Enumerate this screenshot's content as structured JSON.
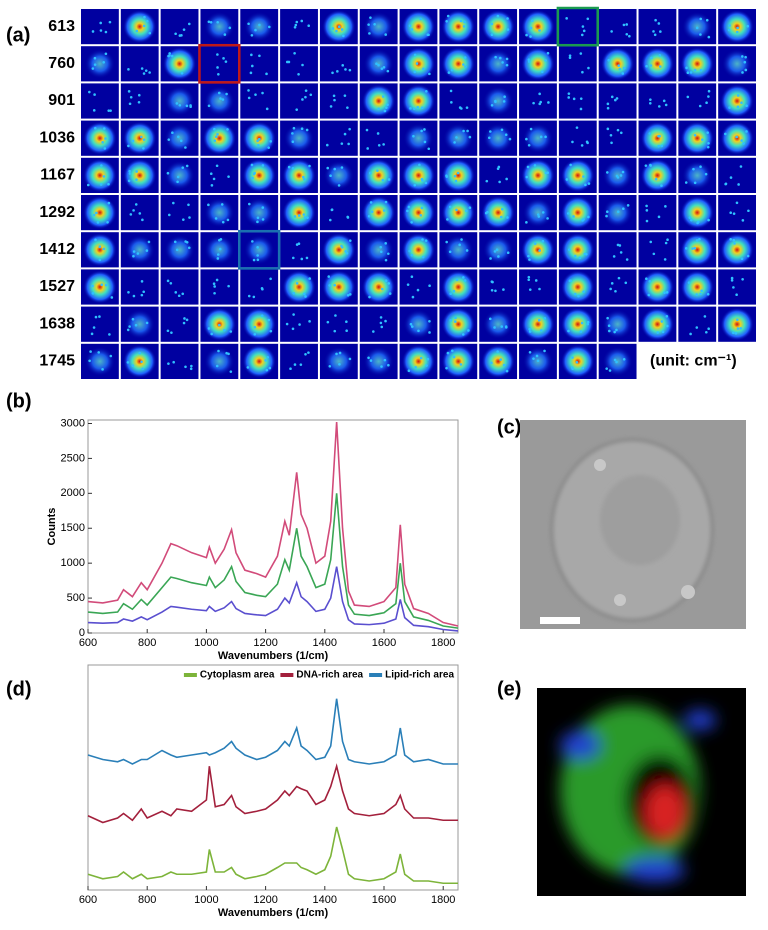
{
  "panels": {
    "labels": [
      "(a)",
      "(b)",
      "(c)",
      "(d)",
      "(e)"
    ]
  },
  "panel_a": {
    "row_labels": [
      613,
      760,
      901,
      1036,
      1167,
      1292,
      1412,
      1527,
      1638,
      1745
    ],
    "unit_label": "(unit: cm⁻¹)"
  },
  "chart_data": [
    {
      "type": "line",
      "xlabel": "Wavenumbers (1/cm)",
      "ylabel": "Counts",
      "x": [
        600,
        650,
        700,
        720,
        750,
        780,
        800,
        850,
        880,
        900,
        950,
        1000,
        1010,
        1030,
        1060,
        1085,
        1100,
        1130,
        1170,
        1200,
        1240,
        1265,
        1280,
        1305,
        1320,
        1340,
        1370,
        1400,
        1420,
        1440,
        1460,
        1480,
        1500,
        1550,
        1600,
        1640,
        1655,
        1670,
        1700,
        1750,
        1800,
        1850
      ],
      "series": [
        {
          "color": "#d24b7a",
          "values": [
            450,
            430,
            470,
            620,
            520,
            720,
            620,
            1000,
            1280,
            1250,
            1150,
            1080,
            1230,
            1000,
            1200,
            1480,
            1150,
            900,
            850,
            800,
            1100,
            1600,
            1400,
            2300,
            1700,
            1500,
            1000,
            1100,
            1600,
            3020,
            1500,
            600,
            400,
            380,
            450,
            650,
            1550,
            700,
            350,
            280,
            150,
            100
          ]
        },
        {
          "color": "#3aa655",
          "values": [
            300,
            280,
            300,
            420,
            340,
            480,
            400,
            650,
            800,
            780,
            720,
            680,
            800,
            650,
            760,
            950,
            740,
            580,
            540,
            520,
            700,
            1050,
            900,
            1500,
            1100,
            950,
            650,
            700,
            1050,
            2000,
            950,
            400,
            270,
            250,
            290,
            420,
            1000,
            450,
            230,
            180,
            100,
            70
          ]
        },
        {
          "color": "#5a4fcf",
          "values": [
            150,
            140,
            150,
            200,
            170,
            230,
            190,
            300,
            380,
            370,
            340,
            320,
            380,
            310,
            360,
            450,
            350,
            280,
            260,
            250,
            340,
            500,
            430,
            720,
            520,
            450,
            310,
            340,
            500,
            950,
            450,
            190,
            130,
            120,
            140,
            200,
            480,
            220,
            110,
            90,
            50,
            30
          ]
        }
      ],
      "xlim": [
        600,
        1850
      ],
      "ylim": [
        0,
        3050
      ],
      "xticks": [
        600,
        800,
        1000,
        1200,
        1400,
        1600,
        1800
      ],
      "yticks": [
        0,
        500,
        1000,
        1500,
        2000,
        2500,
        3000
      ]
    },
    {
      "type": "line",
      "xlabel": "Wavenumbers (1/cm)",
      "x": [
        600,
        650,
        700,
        720,
        750,
        780,
        800,
        850,
        880,
        900,
        950,
        1000,
        1010,
        1030,
        1060,
        1085,
        1100,
        1130,
        1170,
        1200,
        1240,
        1265,
        1280,
        1305,
        1320,
        1340,
        1370,
        1400,
        1420,
        1440,
        1460,
        1480,
        1500,
        1550,
        1600,
        1640,
        1655,
        1670,
        1700,
        1750,
        1800,
        1850
      ],
      "series": [
        {
          "name": "Cytoplasm area",
          "color": "#7db43a",
          "values": [
            7,
            5,
            6,
            8,
            5,
            7,
            5,
            6,
            8,
            7,
            7,
            8,
            18,
            8,
            8,
            10,
            7,
            5,
            6,
            7,
            10,
            12,
            12,
            12,
            10,
            9,
            7,
            9,
            15,
            28,
            18,
            7,
            5,
            4,
            5,
            8,
            16,
            7,
            4,
            4,
            3,
            3
          ]
        },
        {
          "name": "DNA-rich area",
          "color": "#a3203c",
          "values": [
            33,
            30,
            32,
            34,
            31,
            36,
            32,
            35,
            33,
            36,
            35,
            40,
            55,
            37,
            38,
            42,
            37,
            34,
            35,
            36,
            40,
            44,
            42,
            46,
            45,
            44,
            38,
            40,
            46,
            55,
            44,
            36,
            34,
            33,
            34,
            38,
            42,
            36,
            32,
            32,
            31,
            31
          ]
        },
        {
          "name": "Lipid-rich area",
          "color": "#2a7fb8",
          "values": [
            60,
            58,
            57,
            58,
            56,
            58,
            58,
            62,
            60,
            59,
            60,
            61,
            60,
            61,
            63,
            66,
            63,
            60,
            58,
            59,
            62,
            66,
            64,
            72,
            64,
            62,
            58,
            59,
            64,
            85,
            66,
            58,
            57,
            56,
            57,
            60,
            72,
            60,
            57,
            58,
            56,
            56
          ]
        }
      ],
      "xlim": [
        600,
        1850
      ],
      "ylim": [
        0,
        100
      ],
      "xticks": [
        600,
        800,
        1000,
        1200,
        1400,
        1600,
        1800
      ],
      "legend": "top-right"
    }
  ]
}
